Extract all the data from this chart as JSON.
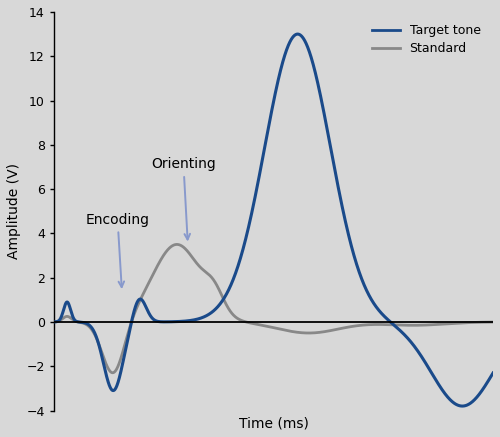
{
  "background_color": "#d8d8d8",
  "plot_bg_color": "#d8d8d8",
  "target_color": "#1a4a8a",
  "standard_color": "#888888",
  "target_linewidth": 2.2,
  "standard_linewidth": 2.0,
  "ylabel": "Amplitude (V)",
  "xlabel": "Time (ms)",
  "ylim": [
    -4,
    14
  ],
  "yticks": [
    -4,
    -2,
    0,
    2,
    4,
    6,
    8,
    10,
    12,
    14
  ],
  "legend_labels": [
    "Target tone",
    "Standard"
  ],
  "annotation_color": "#8899cc",
  "annotation_fontsize": 10,
  "axis_label_fontsize": 10,
  "legend_fontsize": 9,
  "tick_labelsize": 9
}
